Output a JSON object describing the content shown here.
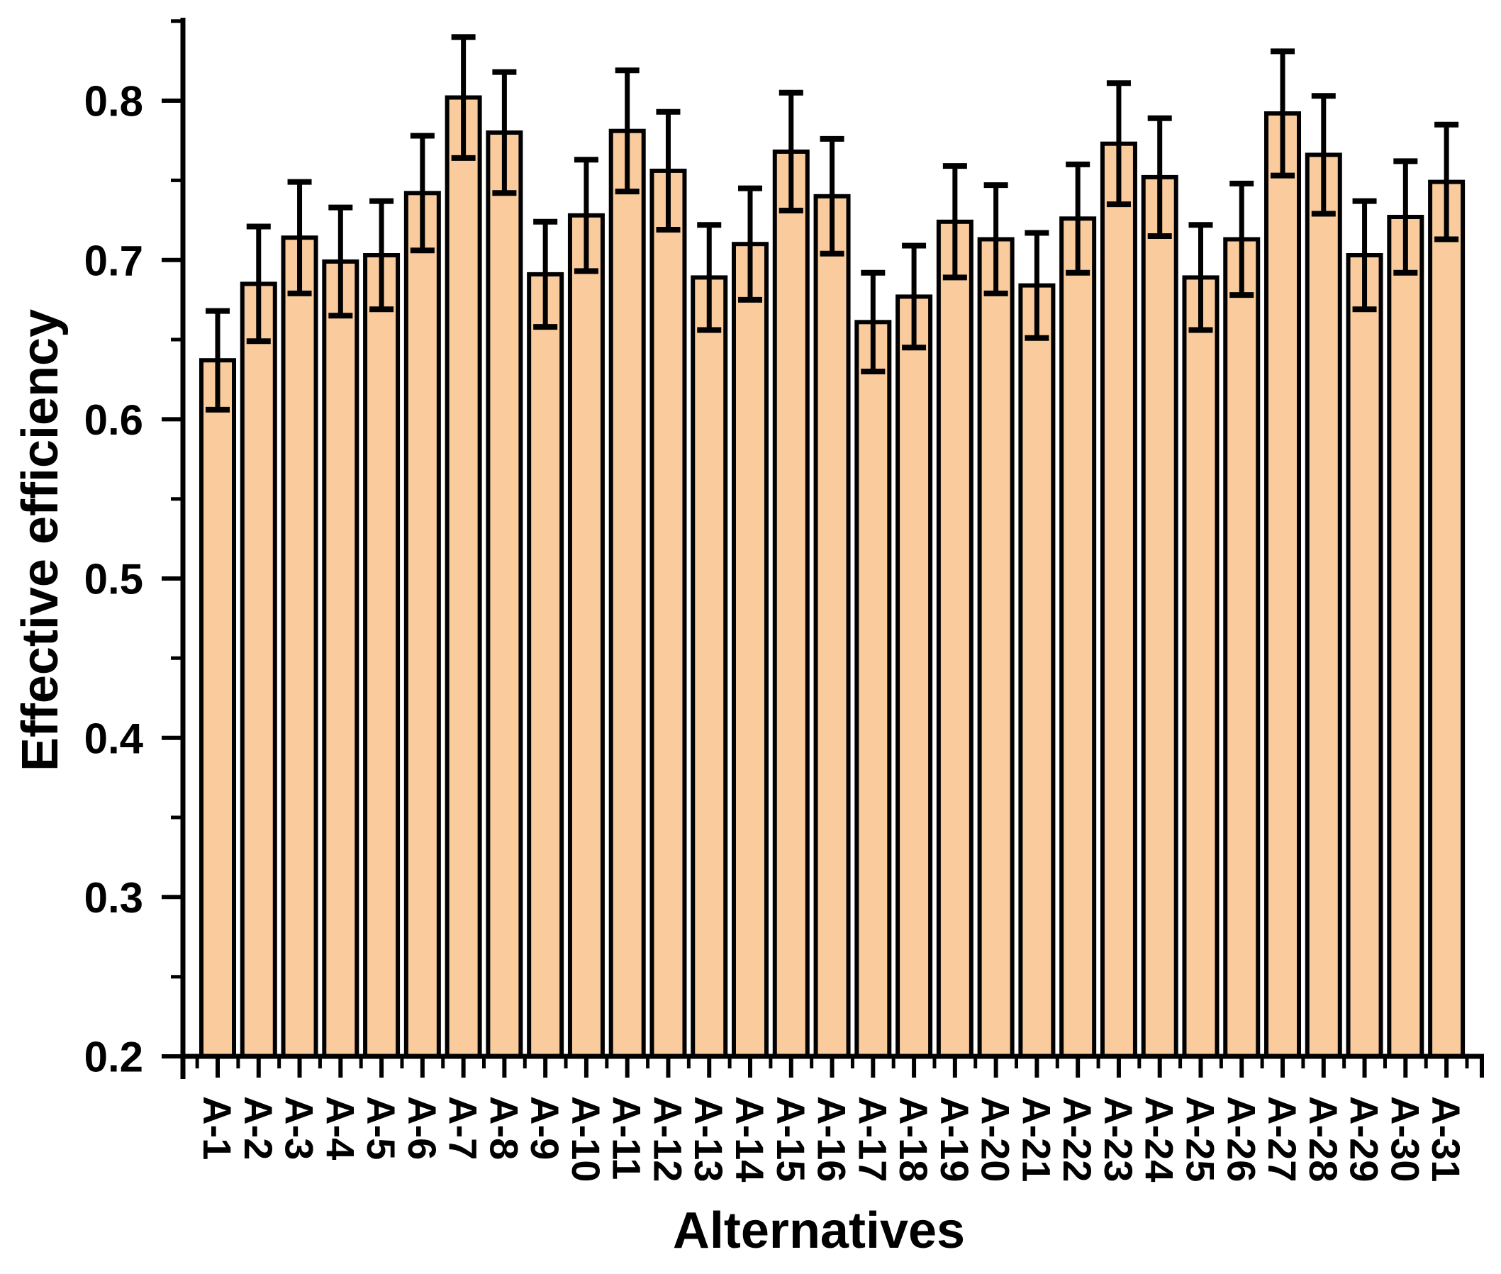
{
  "chart_data": {
    "type": "bar",
    "title": "",
    "xlabel": "Alternatives",
    "ylabel": "Effective efficiency",
    "categories": [
      "A-1",
      "A-2",
      "A-3",
      "A-4",
      "A-5",
      "A-6",
      "A-7",
      "A-8",
      "A-9",
      "A-10",
      "A-11",
      "A-12",
      "A-13",
      "A-14",
      "A-15",
      "A-16",
      "A-17",
      "A-18",
      "A-19",
      "A-20",
      "A-21",
      "A-22",
      "A-23",
      "A-24",
      "A-25",
      "A-26",
      "A-27",
      "A-28",
      "A-29",
      "A-30",
      "A-31"
    ],
    "values": [
      0.637,
      0.685,
      0.714,
      0.699,
      0.703,
      0.742,
      0.802,
      0.78,
      0.691,
      0.728,
      0.781,
      0.756,
      0.689,
      0.71,
      0.768,
      0.74,
      0.661,
      0.677,
      0.724,
      0.713,
      0.684,
      0.726,
      0.773,
      0.752,
      0.689,
      0.713,
      0.792,
      0.766,
      0.703,
      0.727,
      0.749
    ],
    "errors": [
      0.031,
      0.036,
      0.035,
      0.034,
      0.034,
      0.036,
      0.038,
      0.038,
      0.033,
      0.035,
      0.038,
      0.037,
      0.033,
      0.035,
      0.037,
      0.036,
      0.031,
      0.032,
      0.035,
      0.034,
      0.033,
      0.034,
      0.038,
      0.037,
      0.033,
      0.035,
      0.039,
      0.037,
      0.034,
      0.035,
      0.036
    ],
    "ylim": [
      0.2,
      0.85
    ],
    "yticks_major": [
      0.2,
      0.3,
      0.4,
      0.5,
      0.6,
      0.7,
      0.8
    ],
    "yticks_minor": [
      0.25,
      0.35,
      0.45,
      0.55,
      0.65,
      0.75,
      0.85
    ],
    "grid": false,
    "legend": null,
    "error_bar_style": "caps both ends, drawn over bar",
    "colors": {
      "bar_fill": "#FACB9D",
      "bar_border": "#000000",
      "error_bar": "#000000",
      "axis": "#000000",
      "text": "#000000",
      "background": "#FFFFFF"
    }
  }
}
